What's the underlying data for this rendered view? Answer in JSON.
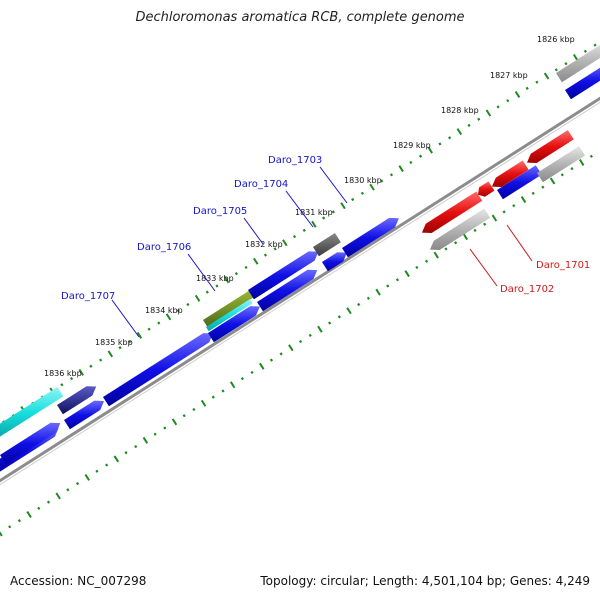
{
  "title": "Dechloromonas aromatica RCB, complete genome",
  "footer": {
    "accession": "Accession: NC_007298",
    "summary": "Topology: circular; Length: 4,501,104 bp; Genes: 4,249"
  },
  "colors": {
    "forward_gene": "#1010e6",
    "reverse_gene": "#e61010",
    "gray_gene": "#b4b4b4",
    "cyan_gene": "#17dede",
    "dark_gene": "#5a5a5a",
    "tick_green": "#1f8a1f",
    "backbone": "#8c8c8c",
    "forward_label": "#1515c8",
    "reverse_label": "#cc1a1a"
  },
  "ticks": [
    {
      "label": "1826 kbp"
    },
    {
      "label": "1827 kbp"
    },
    {
      "label": "1828 kbp"
    },
    {
      "label": "1829 kbp"
    },
    {
      "label": "1830 kbp"
    },
    {
      "label": "1831 kbp"
    },
    {
      "label": "1832 kbp"
    },
    {
      "label": "1833 kbp"
    },
    {
      "label": "1834 kbp"
    },
    {
      "label": "1835 kbp"
    },
    {
      "label": "1836 kbp"
    }
  ],
  "gene_labels": [
    {
      "name": "Daro_1703",
      "strand": "forward"
    },
    {
      "name": "Daro_1704",
      "strand": "forward"
    },
    {
      "name": "Daro_1705",
      "strand": "forward"
    },
    {
      "name": "Daro_1706",
      "strand": "forward"
    },
    {
      "name": "Daro_1707",
      "strand": "forward"
    },
    {
      "name": "Daro_1701",
      "strand": "reverse"
    },
    {
      "name": "Daro_1702",
      "strand": "reverse"
    }
  ]
}
